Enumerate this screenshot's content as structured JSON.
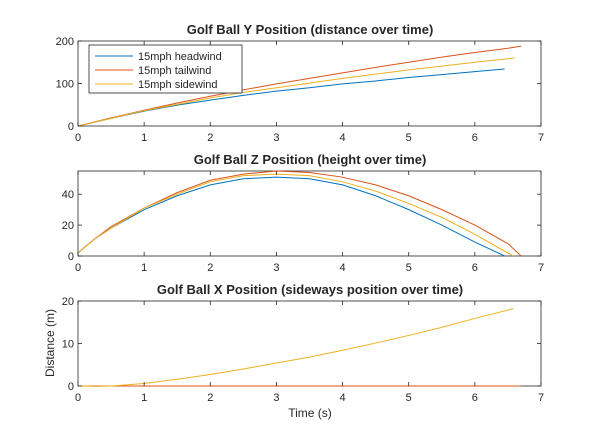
{
  "chart_data": [
    {
      "type": "line",
      "title": "Golf Ball Y Position (distance over time)",
      "xlabel": "",
      "ylabel": "",
      "xlim": [
        0,
        7
      ],
      "ylim": [
        0,
        200
      ],
      "xticks": [
        0,
        1,
        2,
        3,
        4,
        5,
        6,
        7
      ],
      "yticks": [
        0,
        100,
        200
      ],
      "grid": false,
      "legend": "top-left",
      "series": [
        {
          "name": "15mph headwind",
          "color": "#0072BD",
          "x": [
            0,
            0.5,
            1,
            1.5,
            2,
            2.5,
            3,
            3.5,
            4,
            4.5,
            5,
            5.5,
            6,
            6.45
          ],
          "y": [
            0,
            18,
            35,
            49,
            61,
            72,
            82,
            90,
            99,
            106,
            114,
            121,
            128,
            134
          ]
        },
        {
          "name": "15mph tailwind",
          "color": "#D95319",
          "x": [
            0,
            0.5,
            1,
            1.5,
            2,
            2.5,
            3,
            3.5,
            4,
            4.5,
            5,
            5.5,
            6,
            6.5,
            6.7
          ],
          "y": [
            0,
            19,
            37,
            54,
            70,
            85,
            99,
            112,
            125,
            138,
            150,
            162,
            173,
            183,
            188
          ]
        },
        {
          "name": "15mph sidewind",
          "color": "#EDB120",
          "x": [
            0,
            0.5,
            1,
            1.5,
            2,
            2.5,
            3,
            3.5,
            4,
            4.5,
            5,
            5.5,
            6,
            6.6
          ],
          "y": [
            0,
            18,
            36,
            51,
            66,
            79,
            90,
            101,
            112,
            122,
            132,
            141,
            150,
            160
          ]
        }
      ]
    },
    {
      "type": "line",
      "title": "Golf Ball Z Position (height over time)",
      "xlabel": "",
      "ylabel": "",
      "xlim": [
        0,
        7
      ],
      "ylim": [
        0,
        55
      ],
      "xticks": [
        0,
        1,
        2,
        3,
        4,
        5,
        6,
        7
      ],
      "yticks": [
        0,
        20,
        40
      ],
      "grid": false,
      "series": [
        {
          "name": "15mph headwind",
          "color": "#0072BD",
          "x": [
            0,
            0.25,
            0.5,
            1,
            1.5,
            2,
            2.5,
            3,
            3.5,
            4,
            4.5,
            5,
            5.5,
            6,
            6.45
          ],
          "y": [
            2,
            11,
            18,
            30,
            39,
            46,
            50,
            51,
            50,
            46,
            39,
            30,
            20,
            9,
            0
          ]
        },
        {
          "name": "15mph tailwind",
          "color": "#D95319",
          "x": [
            0,
            0.25,
            0.5,
            1,
            1.5,
            2,
            2.5,
            3,
            3.5,
            4,
            4.5,
            5,
            5.5,
            6,
            6.5,
            6.7
          ],
          "y": [
            2,
            11,
            19,
            31,
            41,
            49,
            53,
            55,
            54,
            51,
            46,
            39,
            30,
            20,
            8,
            0
          ]
        },
        {
          "name": "15mph sidewind",
          "color": "#EDB120",
          "x": [
            0,
            0.25,
            0.5,
            1,
            1.5,
            2,
            2.5,
            3,
            3.5,
            4,
            4.5,
            5,
            5.5,
            6,
            6.58
          ],
          "y": [
            2,
            11,
            18,
            31,
            40,
            48,
            52,
            53,
            52,
            48,
            42,
            34,
            25,
            14,
            0
          ]
        }
      ]
    },
    {
      "type": "line",
      "title": "Golf Ball X Position (sideways position over time)",
      "xlabel": "Time (s)",
      "ylabel": "Distance (m)",
      "xlim": [
        0,
        7
      ],
      "ylim": [
        0,
        20
      ],
      "xticks": [
        0,
        1,
        2,
        3,
        4,
        5,
        6,
        7
      ],
      "yticks": [
        0,
        10,
        20
      ],
      "grid": false,
      "series": [
        {
          "name": "15mph headwind",
          "color": "#0072BD",
          "x": [
            0,
            6.45
          ],
          "y": [
            0,
            0
          ]
        },
        {
          "name": "15mph tailwind",
          "color": "#D95319",
          "x": [
            0,
            6.7
          ],
          "y": [
            0,
            0
          ]
        },
        {
          "name": "15mph sidewind",
          "color": "#EDB120",
          "x": [
            0,
            0.3,
            0.5,
            1,
            1.5,
            2,
            2.5,
            3,
            3.5,
            4,
            4.5,
            5,
            5.5,
            6,
            6.58
          ],
          "y": [
            0,
            -0.1,
            0,
            0.6,
            1.6,
            2.7,
            4.0,
            5.4,
            6.8,
            8.4,
            10.1,
            11.9,
            13.8,
            15.9,
            18.2
          ]
        }
      ]
    }
  ]
}
